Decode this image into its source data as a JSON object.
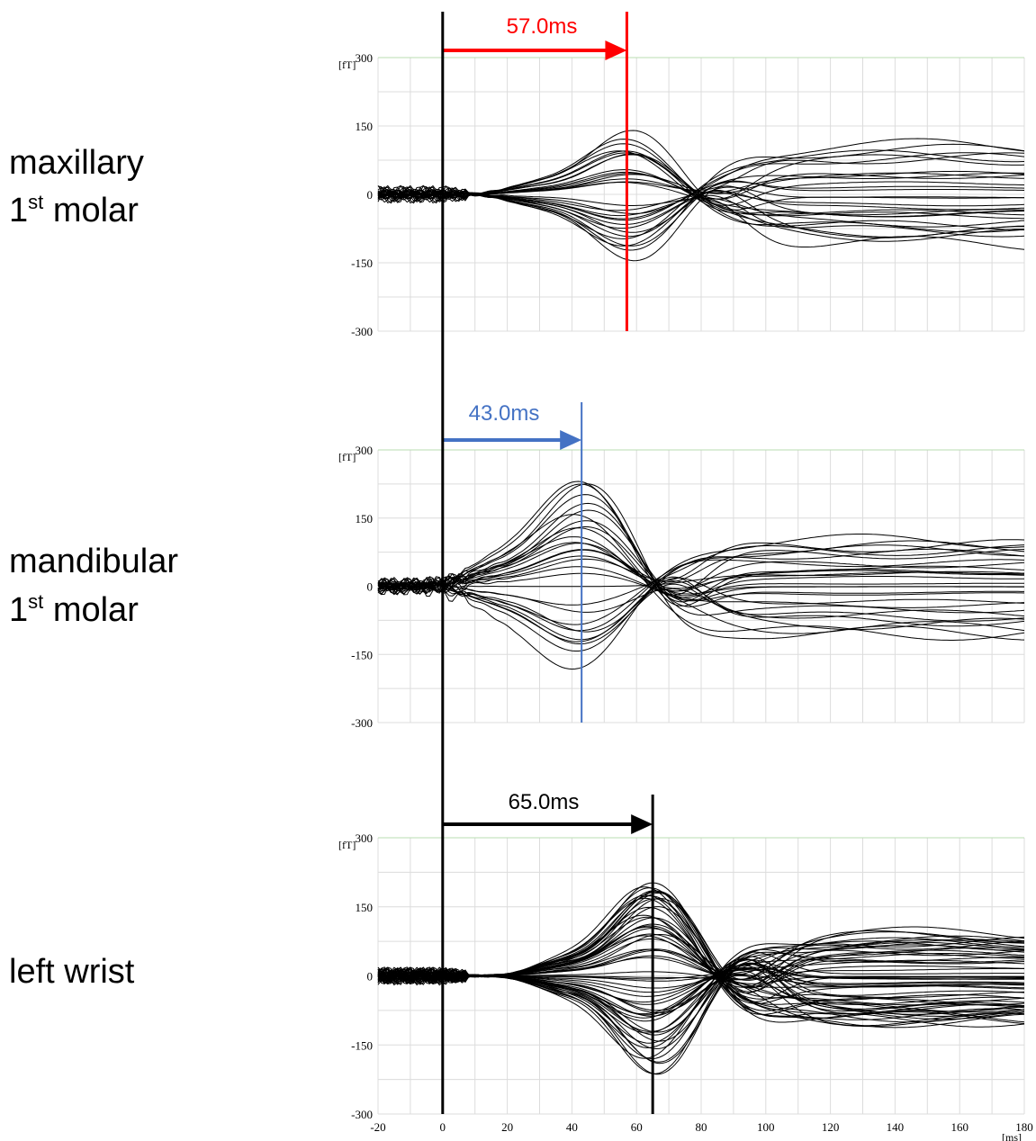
{
  "chart_data": [
    {
      "type": "line",
      "row_label": [
        "maxillary",
        "1",
        "st",
        " molar"
      ],
      "y_unit": "[fT]",
      "ylim": [
        -300,
        300
      ],
      "yticks": [
        300,
        150,
        0,
        -150,
        -300
      ],
      "xlim": [
        -20,
        180
      ],
      "grid": true,
      "n_traces": 30,
      "latency": {
        "label": "57.0ms",
        "value_ms": 57.0,
        "color": "#ff0000"
      },
      "signal": {
        "peak_ms": 57,
        "peak_width_ms": 14,
        "peak_amp_fT": 150,
        "late_amp_fT": 110
      }
    },
    {
      "type": "line",
      "row_label": [
        "mandibular",
        "1",
        "st",
        " molar"
      ],
      "y_unit": "[fT]",
      "ylim": [
        -300,
        300
      ],
      "yticks": [
        300,
        150,
        0,
        -150,
        -300
      ],
      "xlim": [
        -20,
        180
      ],
      "grid": true,
      "n_traces": 30,
      "latency": {
        "label": "43.0ms",
        "value_ms": 43.0,
        "color": "#4472c4"
      },
      "signal": {
        "peak_ms": 43,
        "peak_width_ms": 15,
        "peak_amp_fT": 240,
        "late_amp_fT": 110
      }
    },
    {
      "type": "line",
      "row_label": [
        "left wrist"
      ],
      "y_unit": "[fT]",
      "x_unit": "[ms]",
      "ylim": [
        -300,
        300
      ],
      "yticks": [
        300,
        150,
        0,
        -150,
        -300
      ],
      "xlim": [
        -20,
        180
      ],
      "xticks": [
        -20,
        0,
        20,
        40,
        60,
        80,
        100,
        120,
        140,
        160,
        180
      ],
      "grid": true,
      "n_traces": 60,
      "latency": {
        "label": "65.0ms",
        "value_ms": 65.0,
        "color": "#000000"
      },
      "signal": {
        "peak_ms": 65,
        "peak_width_ms": 13,
        "peak_amp_fT": 220,
        "late_amp_fT": 100
      }
    }
  ],
  "stimulus_marker_ms": 0
}
